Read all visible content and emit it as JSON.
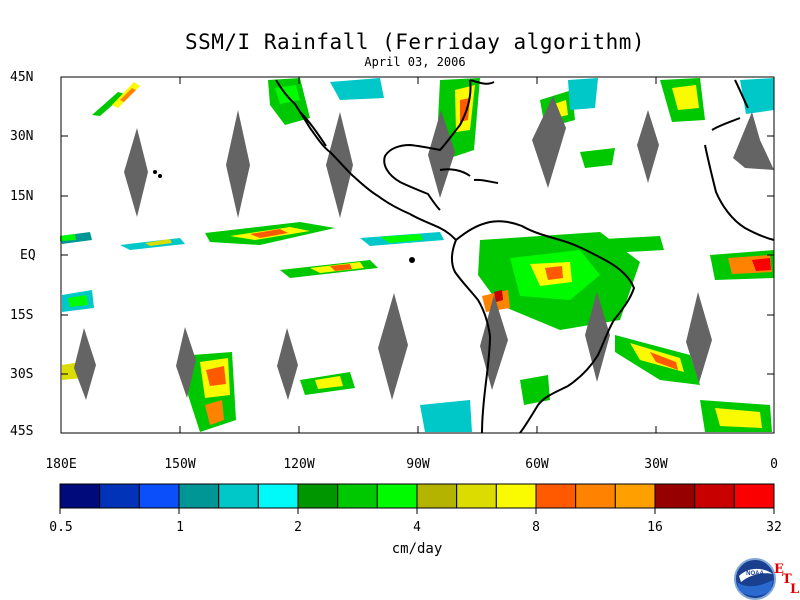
{
  "title": "SSM/I Rainfall (Ferriday algorithm)",
  "date": "April 03, 2006",
  "lat_labels": [
    "45N",
    "30N",
    "15N",
    "EQ",
    "15S",
    "30S",
    "45S"
  ],
  "lon_labels": [
    "180E",
    "150W",
    "120W",
    "90W",
    "60W",
    "30W",
    "0"
  ],
  "colorbar": {
    "colors": [
      "#000a7a",
      "#0033b8",
      "#0a4ffa",
      "#009696",
      "#00c8c8",
      "#00fafa",
      "#009600",
      "#00c800",
      "#00fa00",
      "#b4b400",
      "#dcdc00",
      "#fafa00",
      "#ff5a00",
      "#ff8200",
      "#ffa000",
      "#960000",
      "#c80000",
      "#fa0000"
    ],
    "tick_labels": [
      "0.5",
      "1",
      "2",
      "4",
      "8",
      "16",
      "32"
    ]
  },
  "units": "cm/day",
  "logo": {
    "text": "NOAA",
    "lab_letters": [
      "E",
      "T",
      "L"
    ]
  }
}
